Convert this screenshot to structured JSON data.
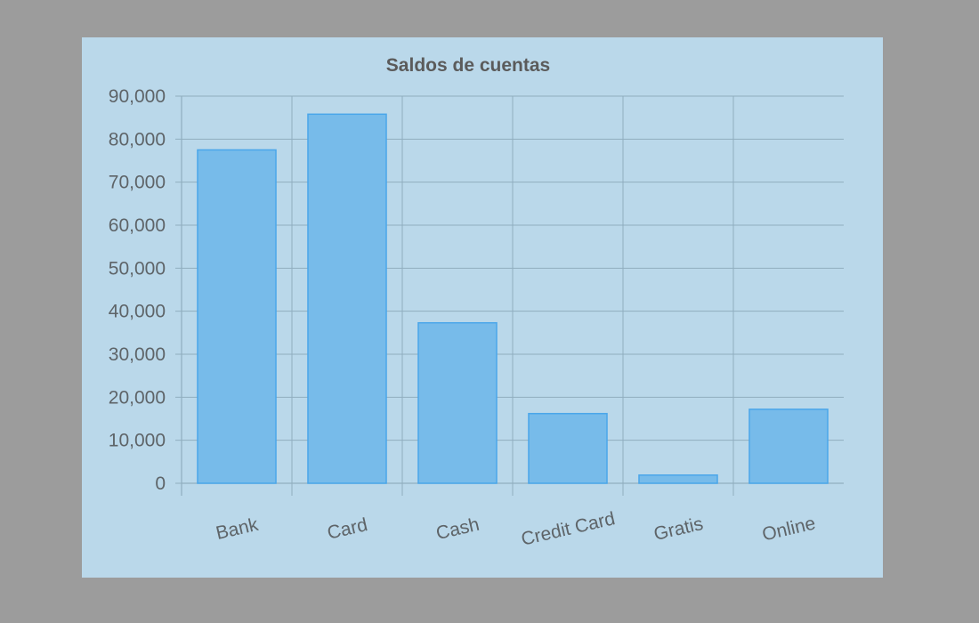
{
  "chart_data": {
    "type": "bar",
    "title": "Saldos de cuentas",
    "xlabel": "",
    "ylabel": "",
    "categories": [
      "Bank",
      "Card",
      "Cash",
      "Credit Card",
      "Gratis",
      "Online"
    ],
    "values": [
      77500,
      85800,
      37300,
      16200,
      1900,
      17200
    ],
    "ylim": [
      0,
      90000
    ],
    "yticks": [
      0,
      10000,
      20000,
      30000,
      40000,
      50000,
      60000,
      70000,
      80000,
      90000
    ],
    "ytick_labels": [
      "0",
      "10,000",
      "20,000",
      "30,000",
      "40,000",
      "50,000",
      "60,000",
      "70,000",
      "80,000",
      "90,000"
    ],
    "grid": true,
    "legend": "none",
    "colors": {
      "bar_fill": "#77bbea",
      "bar_stroke": "#4aa6ea",
      "background": "#bad8ea",
      "grid": "#90aebf"
    }
  }
}
